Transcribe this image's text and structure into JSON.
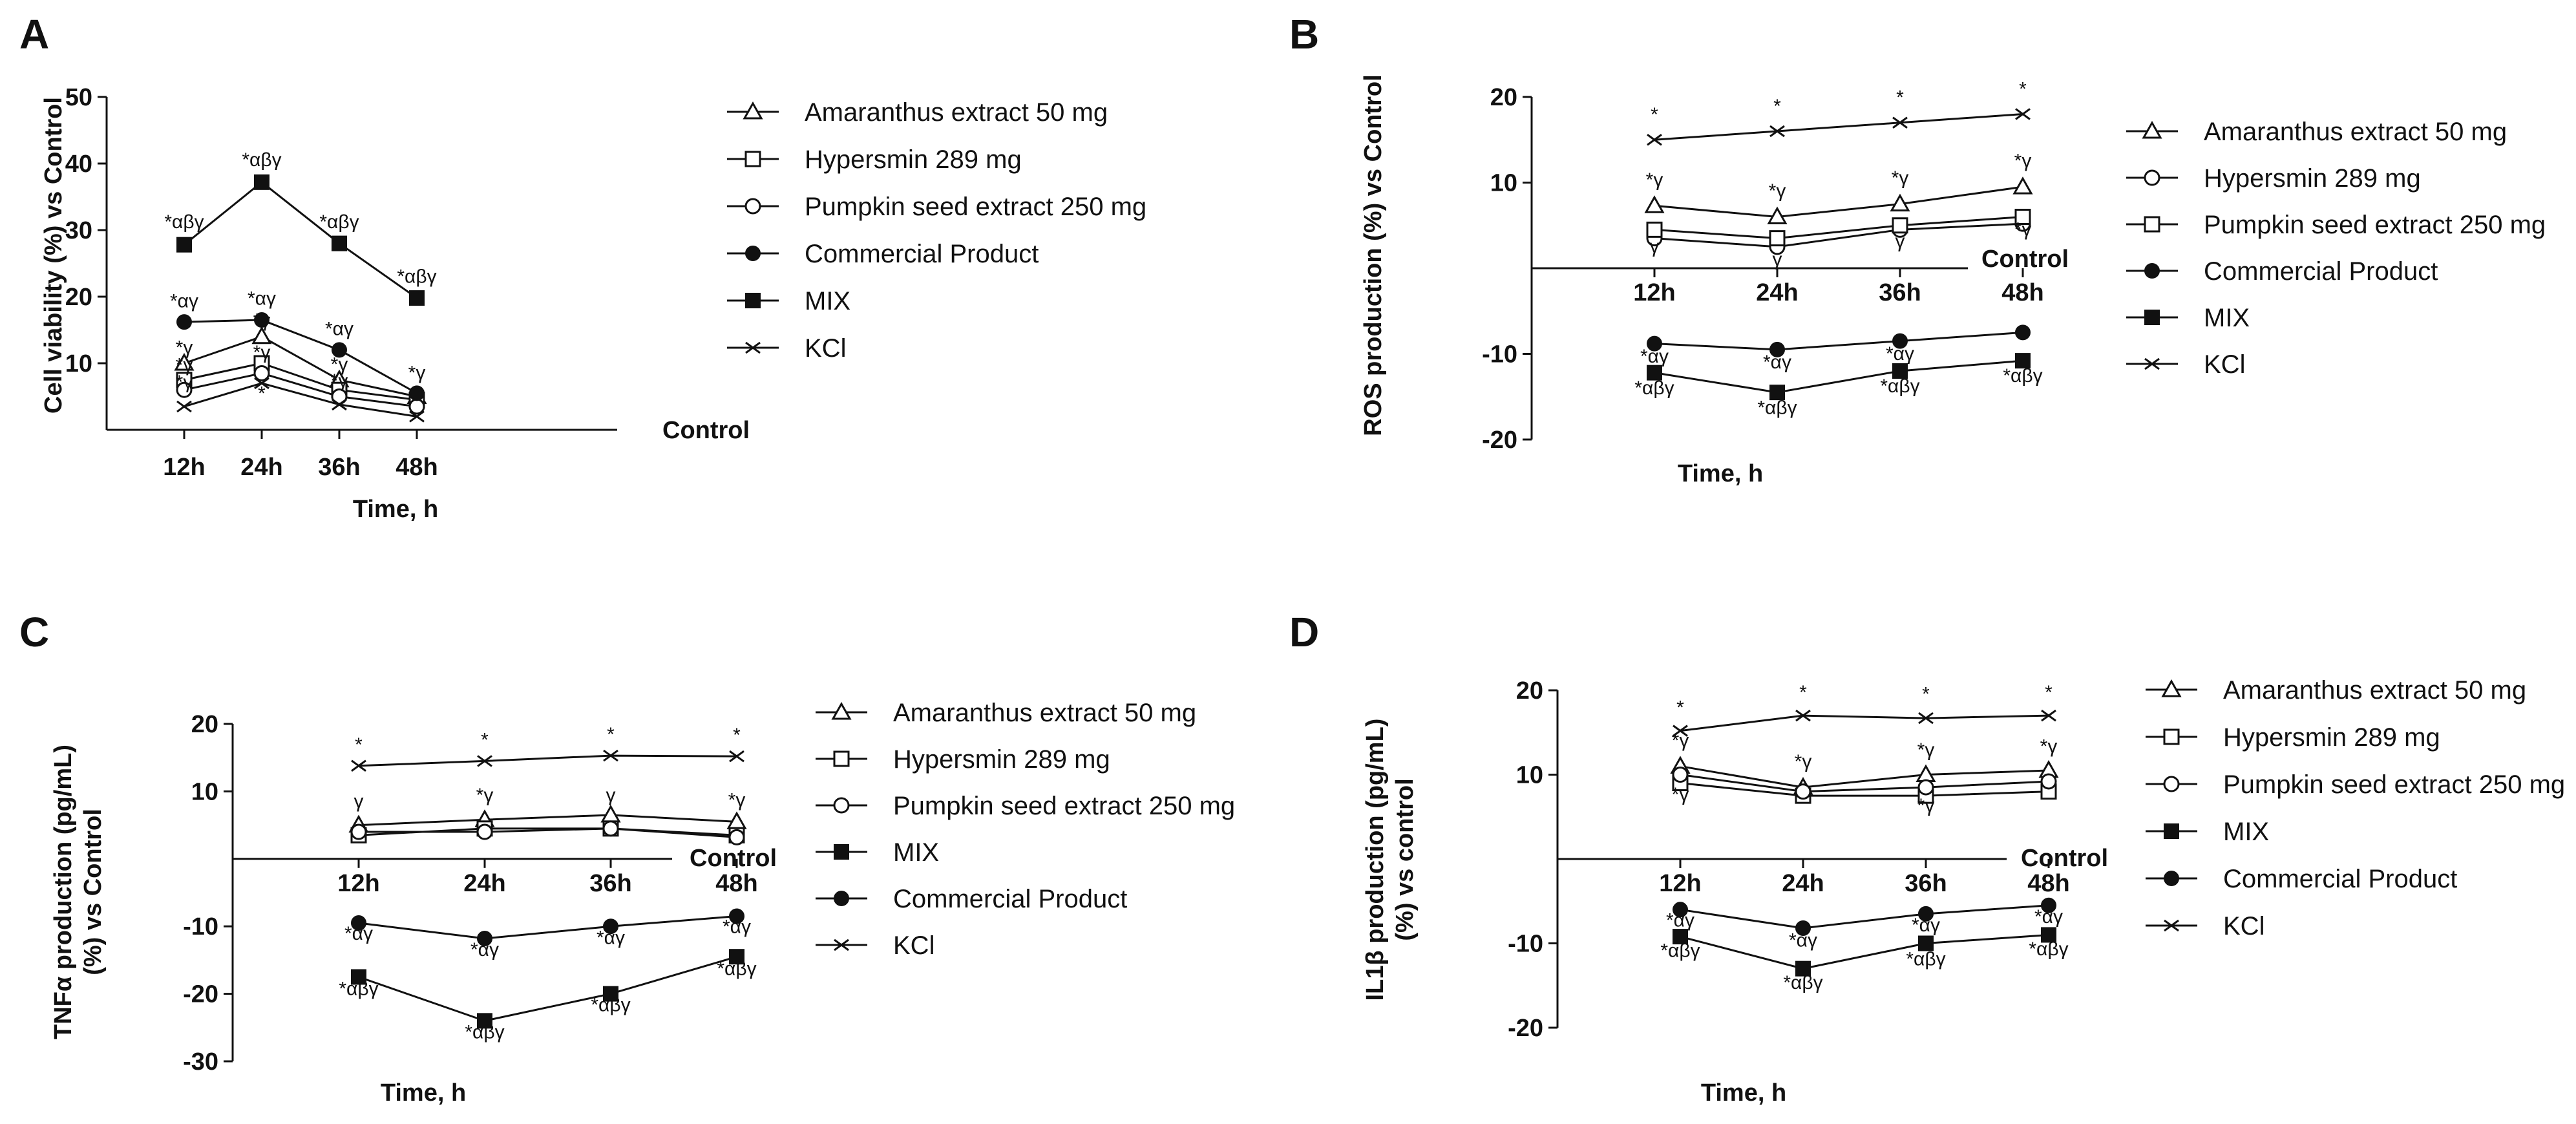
{
  "figure_title": "",
  "chart_data": [
    {
      "panel": "A",
      "type": "line",
      "title": "",
      "xlabel": "Time, h",
      "ylabel": "Cell viability (%) vs Control",
      "control_label": "Control",
      "categories": [
        "12h",
        "24h",
        "36h",
        "48h"
      ],
      "ylim": [
        0,
        50
      ],
      "yticks": [
        10,
        20,
        30,
        40,
        50
      ],
      "legend_position": "right",
      "series": [
        {
          "name": "Amaranthus extract 50 mg",
          "marker": "triangle-open",
          "values": [
            10,
            14,
            7.5,
            5
          ]
        },
        {
          "name": "Hypersmin 289 mg",
          "marker": "square-open",
          "values": [
            7.5,
            10,
            6,
            4.5
          ]
        },
        {
          "name": "Pumpkin seed extract 250 mg",
          "marker": "circle-open",
          "values": [
            6,
            8.5,
            5,
            3.5
          ]
        },
        {
          "name": "Commercial Product",
          "marker": "circle-filled",
          "values": [
            16.2,
            16.5,
            12,
            5.5
          ]
        },
        {
          "name": "MIX",
          "marker": "square-filled",
          "values": [
            27.8,
            37.2,
            28,
            19.8
          ]
        },
        {
          "name": "KCl",
          "marker": "x",
          "values": [
            3.5,
            7,
            3.8,
            2
          ]
        }
      ],
      "annotations": [
        {
          "text": "*αβγ",
          "category": "12h",
          "y": 30.3
        },
        {
          "text": "*αβγ",
          "category": "24h",
          "y": 39.6
        },
        {
          "text": "*αβγ",
          "category": "36h",
          "y": 30.3
        },
        {
          "text": "*αβγ",
          "category": "48h",
          "y": 22.1
        },
        {
          "text": "*αγ",
          "category": "12h",
          "y": 18.4
        },
        {
          "text": "*αγ",
          "category": "24h",
          "y": 18.8
        },
        {
          "text": "*αγ",
          "category": "36h",
          "y": 14.2
        },
        {
          "text": "*γ",
          "category": "12h",
          "y": 11.4
        },
        {
          "text": "*γ",
          "category": "24h",
          "y": 15.5
        },
        {
          "text": "*γ",
          "category": "36h",
          "y": 8.9
        },
        {
          "text": "*γ",
          "category": "48h",
          "y": 7.6
        },
        {
          "text": "*γ",
          "category": "12h",
          "y": 8.8
        },
        {
          "text": "*γ",
          "category": "24h",
          "y": 10.7
        },
        {
          "text": "*γ",
          "category": "36h",
          "y": 6.4
        },
        {
          "text": "*γ",
          "category": "12h",
          "y": 6.2
        },
        {
          "text": "*",
          "category": "24h",
          "y": 4.5
        }
      ]
    },
    {
      "panel": "B",
      "type": "line",
      "title": "",
      "xlabel": "Time, h",
      "ylabel": "ROS production (%) vs Control",
      "control_label": "Control",
      "categories": [
        "12h",
        "24h",
        "36h",
        "48h"
      ],
      "ylim": [
        -20,
        20
      ],
      "yticks": [
        -20,
        -10,
        10,
        20
      ],
      "legend_position": "right",
      "series": [
        {
          "name": "Amaranthus extract 50 mg",
          "marker": "triangle-open",
          "values": [
            7.3,
            6,
            7.5,
            9.5
          ]
        },
        {
          "name": "Hypersmin 289 mg",
          "marker": "circle-open",
          "values": [
            3.5,
            2.5,
            4.5,
            5.2
          ]
        },
        {
          "name": "Pumpkin seed extract 250 mg",
          "marker": "square-open",
          "values": [
            4.5,
            3.5,
            5,
            6
          ]
        },
        {
          "name": "Commercial Product",
          "marker": "circle-filled",
          "values": [
            -8.8,
            -9.5,
            -8.5,
            -7.5
          ]
        },
        {
          "name": "MIX",
          "marker": "square-filled",
          "values": [
            -12.2,
            -14.5,
            -12,
            -10.8
          ]
        },
        {
          "name": "KCl",
          "marker": "x",
          "values": [
            15,
            16,
            17,
            18
          ]
        }
      ],
      "annotations": [
        {
          "text": "*",
          "category": "12h",
          "y": 17.2
        },
        {
          "text": "*",
          "category": "24h",
          "y": 18.2
        },
        {
          "text": "*",
          "category": "36h",
          "y": 19.2
        },
        {
          "text": "*",
          "category": "48h",
          "y": 20.2
        },
        {
          "text": "*γ",
          "category": "12h",
          "y": 9.6
        },
        {
          "text": "*γ",
          "category": "24h",
          "y": 8.3
        },
        {
          "text": "*γ",
          "category": "36h",
          "y": 9.8
        },
        {
          "text": "*γ",
          "category": "48h",
          "y": 11.8
        },
        {
          "text": "γ",
          "category": "12h",
          "y": 1.8
        },
        {
          "text": "γ",
          "category": "24h",
          "y": 0.3
        },
        {
          "text": "γ",
          "category": "36h",
          "y": 2.4
        },
        {
          "text": "*γ",
          "category": "48h",
          "y": 3.8
        },
        {
          "text": "*αγ",
          "category": "12h",
          "y": -11.0
        },
        {
          "text": "*αγ",
          "category": "24h",
          "y": -11.7
        },
        {
          "text": "*αγ",
          "category": "36h",
          "y": -10.7
        },
        {
          "text": "*αβγ",
          "category": "12h",
          "y": -14.7
        },
        {
          "text": "*αβγ",
          "category": "24h",
          "y": -17.0
        },
        {
          "text": "*αβγ",
          "category": "36h",
          "y": -14.5
        },
        {
          "text": "*αβγ",
          "category": "48h",
          "y": -13.3
        }
      ]
    },
    {
      "panel": "C",
      "type": "line",
      "title": "",
      "xlabel": "Time, h",
      "ylabel": "TNFα production (pg/mL) (%) vs Control",
      "control_label": "Control",
      "categories": [
        "12h",
        "24h",
        "36h",
        "48h"
      ],
      "ylim": [
        -30,
        20
      ],
      "yticks": [
        -30,
        -20,
        -10,
        10,
        20
      ],
      "legend_position": "right",
      "series": [
        {
          "name": "Amaranthus extract 50 mg",
          "marker": "triangle-open",
          "values": [
            5,
            5.8,
            6.5,
            5.5
          ]
        },
        {
          "name": "Hypersmin 289 mg",
          "marker": "square-open",
          "values": [
            3.5,
            4.5,
            4.5,
            3.5
          ]
        },
        {
          "name": "Pumpkin seed extract 250 mg",
          "marker": "circle-open",
          "values": [
            4,
            4,
            4.5,
            3.2
          ]
        },
        {
          "name": "MIX",
          "marker": "square-filled",
          "values": [
            -17.5,
            -24,
            -20,
            -14.5
          ]
        },
        {
          "name": "Commercial Product",
          "marker": "circle-filled",
          "values": [
            -9.5,
            -11.8,
            -10,
            -8.5
          ]
        },
        {
          "name": "KCl",
          "marker": "x",
          "values": [
            13.8,
            14.5,
            15.3,
            15.2
          ]
        }
      ],
      "annotations": [
        {
          "text": "*",
          "category": "12h",
          "y": 16.0
        },
        {
          "text": "*",
          "category": "24h",
          "y": 16.7
        },
        {
          "text": "*",
          "category": "36h",
          "y": 17.5
        },
        {
          "text": "*",
          "category": "48h",
          "y": 17.4
        },
        {
          "text": "γ",
          "category": "12h",
          "y": 7.6
        },
        {
          "text": "*γ",
          "category": "24h",
          "y": 8.5
        },
        {
          "text": "γ",
          "category": "36h",
          "y": 8.5
        },
        {
          "text": "*γ",
          "category": "48h",
          "y": 7.8
        },
        {
          "text": "*αγ",
          "category": "12h",
          "y": -12.0
        },
        {
          "text": "*αγ",
          "category": "24h",
          "y": -14.4
        },
        {
          "text": "*αγ",
          "category": "36h",
          "y": -12.6
        },
        {
          "text": "*αγ",
          "category": "48h",
          "y": -11.0
        },
        {
          "text": "*αβγ",
          "category": "12h",
          "y": -20.2
        },
        {
          "text": "*αβγ",
          "category": "24h",
          "y": -26.6
        },
        {
          "text": "*αβγ",
          "category": "36h",
          "y": -22.6
        },
        {
          "text": "*αβγ",
          "category": "48h",
          "y": -17.2
        }
      ]
    },
    {
      "panel": "D",
      "type": "line",
      "title": "",
      "xlabel": "Time, h",
      "ylabel": "IL1β production (pg/mL) (%) vs control",
      "control_label": "Control",
      "categories": [
        "12h",
        "24h",
        "36h",
        "48h"
      ],
      "ylim": [
        -20,
        20
      ],
      "yticks": [
        -20,
        -10,
        10,
        20
      ],
      "legend_position": "right",
      "series": [
        {
          "name": "Amaranthus extract 50 mg",
          "marker": "triangle-open",
          "values": [
            11,
            8.5,
            10,
            10.5
          ]
        },
        {
          "name": "Hypersmin 289 mg",
          "marker": "square-open",
          "values": [
            9,
            7.5,
            7.5,
            8
          ]
        },
        {
          "name": "Pumpkin seed extract 250 mg",
          "marker": "circle-open",
          "values": [
            10,
            8,
            8.5,
            9.2
          ]
        },
        {
          "name": "MIX",
          "marker": "square-filled",
          "values": [
            -9.2,
            -13,
            -10,
            -9
          ]
        },
        {
          "name": "Commercial Product",
          "marker": "circle-filled",
          "values": [
            -6,
            -8.2,
            -6.5,
            -5.5
          ]
        },
        {
          "name": "KCl",
          "marker": "x",
          "values": [
            15.2,
            17,
            16.7,
            17
          ]
        }
      ],
      "annotations": [
        {
          "text": "*",
          "category": "12h",
          "y": 17.2
        },
        {
          "text": "*",
          "category": "24h",
          "y": 19.0
        },
        {
          "text": "*",
          "category": "36h",
          "y": 18.8
        },
        {
          "text": "*",
          "category": "48h",
          "y": 19.0
        },
        {
          "text": "*γ",
          "category": "12h",
          "y": 13.3
        },
        {
          "text": "*γ",
          "category": "24h",
          "y": 10.8
        },
        {
          "text": "*γ",
          "category": "36h",
          "y": 12.2
        },
        {
          "text": "*γ",
          "category": "48h",
          "y": 12.6
        },
        {
          "text": "*γ",
          "category": "12h",
          "y": 6.9
        },
        {
          "text": "*γ",
          "category": "36h",
          "y": 5.6
        },
        {
          "text": "*αγ",
          "category": "12h",
          "y": -8.0
        },
        {
          "text": "*αγ",
          "category": "24h",
          "y": -10.4
        },
        {
          "text": "*αγ",
          "category": "36h",
          "y": -8.6
        },
        {
          "text": "*αγ",
          "category": "48h",
          "y": -7.6
        },
        {
          "text": "*αβγ",
          "category": "12h",
          "y": -11.6
        },
        {
          "text": "*αβγ",
          "category": "24h",
          "y": -15.4
        },
        {
          "text": "*αβγ",
          "category": "36h",
          "y": -12.6
        },
        {
          "text": "*αβγ",
          "category": "48h",
          "y": -11.4
        }
      ]
    }
  ]
}
